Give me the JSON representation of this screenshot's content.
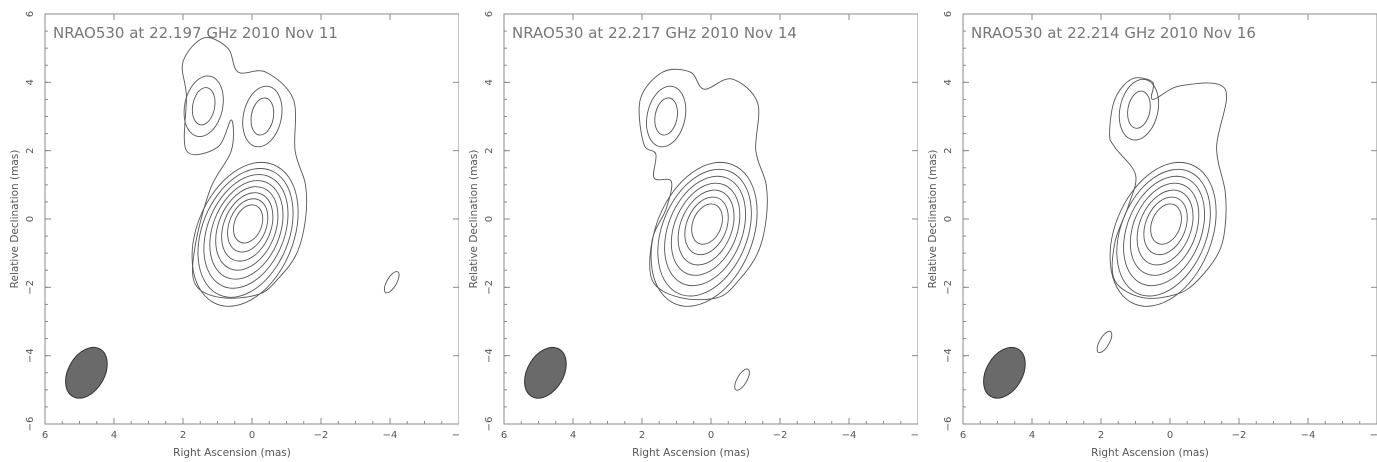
{
  "chart_data": [
    {
      "type": "contour",
      "title": "NRAO530 at 22.197 GHz 2010 Nov 11",
      "xlabel": "Right Ascension  (mas)",
      "ylabel": "Relative Declination  (mas)",
      "xlim": [
        6,
        -6
      ],
      "ylim": [
        -6,
        6
      ],
      "xticks": [
        6,
        4,
        2,
        0,
        -2,
        -4,
        -6
      ],
      "yticks": [
        -6,
        -4,
        -2,
        0,
        2,
        4,
        6
      ],
      "beam": {
        "x": 4.8,
        "y": -4.5,
        "major_mas": 1.6,
        "minor_mas": 1.05,
        "pa_deg": -30
      },
      "core": {
        "x": 0.1,
        "y": -0.1
      },
      "contour_levels": 9,
      "features": [
        {
          "type": "component",
          "x": 1.4,
          "y": 3.3
        },
        {
          "type": "component",
          "x": -0.3,
          "y": 3.0
        },
        {
          "type": "component",
          "x": -4.05,
          "y": -1.85
        }
      ]
    },
    {
      "type": "contour",
      "title": "NRAO530 at 22.217 GHz 2010 Nov 14",
      "xlabel": "Right Ascension  (mas)",
      "ylabel": "Relative Declination  (mas)",
      "xlim": [
        6,
        -6
      ],
      "ylim": [
        -6,
        6
      ],
      "xticks": [
        6,
        4,
        2,
        0,
        -2,
        -4,
        -6
      ],
      "yticks": [
        -6,
        -4,
        -2,
        0,
        2,
        4,
        6
      ],
      "beam": {
        "x": 4.8,
        "y": -4.5,
        "major_mas": 1.6,
        "minor_mas": 1.05,
        "pa_deg": -30
      },
      "core": {
        "x": 0.1,
        "y": -0.1
      },
      "contour_levels": 8,
      "features": [
        {
          "type": "component",
          "x": 1.3,
          "y": 3.0
        },
        {
          "type": "component",
          "x": -0.9,
          "y": -4.7
        }
      ]
    },
    {
      "type": "contour",
      "title": "NRAO530 at 22.214 GHz 2010 Nov 16",
      "xlabel": "Right Ascension  (mas)",
      "ylabel": "Relative Declination  (mas)",
      "xlim": [
        6,
        -6
      ],
      "ylim": [
        -6,
        6
      ],
      "xticks": [
        6,
        4,
        2,
        0,
        -2,
        -4,
        -6
      ],
      "yticks": [
        -6,
        -4,
        -2,
        0,
        2,
        4,
        6
      ],
      "beam": {
        "x": 4.8,
        "y": -4.5,
        "major_mas": 1.6,
        "minor_mas": 1.05,
        "pa_deg": -30
      },
      "core": {
        "x": 0.1,
        "y": -0.1
      },
      "contour_levels": 8,
      "features": [
        {
          "type": "component",
          "x": 0.9,
          "y": 3.2
        },
        {
          "type": "component",
          "x": 1.9,
          "y": -3.6
        }
      ]
    }
  ],
  "tick_labels_x": [
    "6",
    "4",
    "2",
    "0",
    "−2",
    "−4",
    "−6"
  ],
  "tick_labels_y": [
    "−6",
    "−4",
    "−2",
    "0",
    "2",
    "4",
    "6"
  ]
}
